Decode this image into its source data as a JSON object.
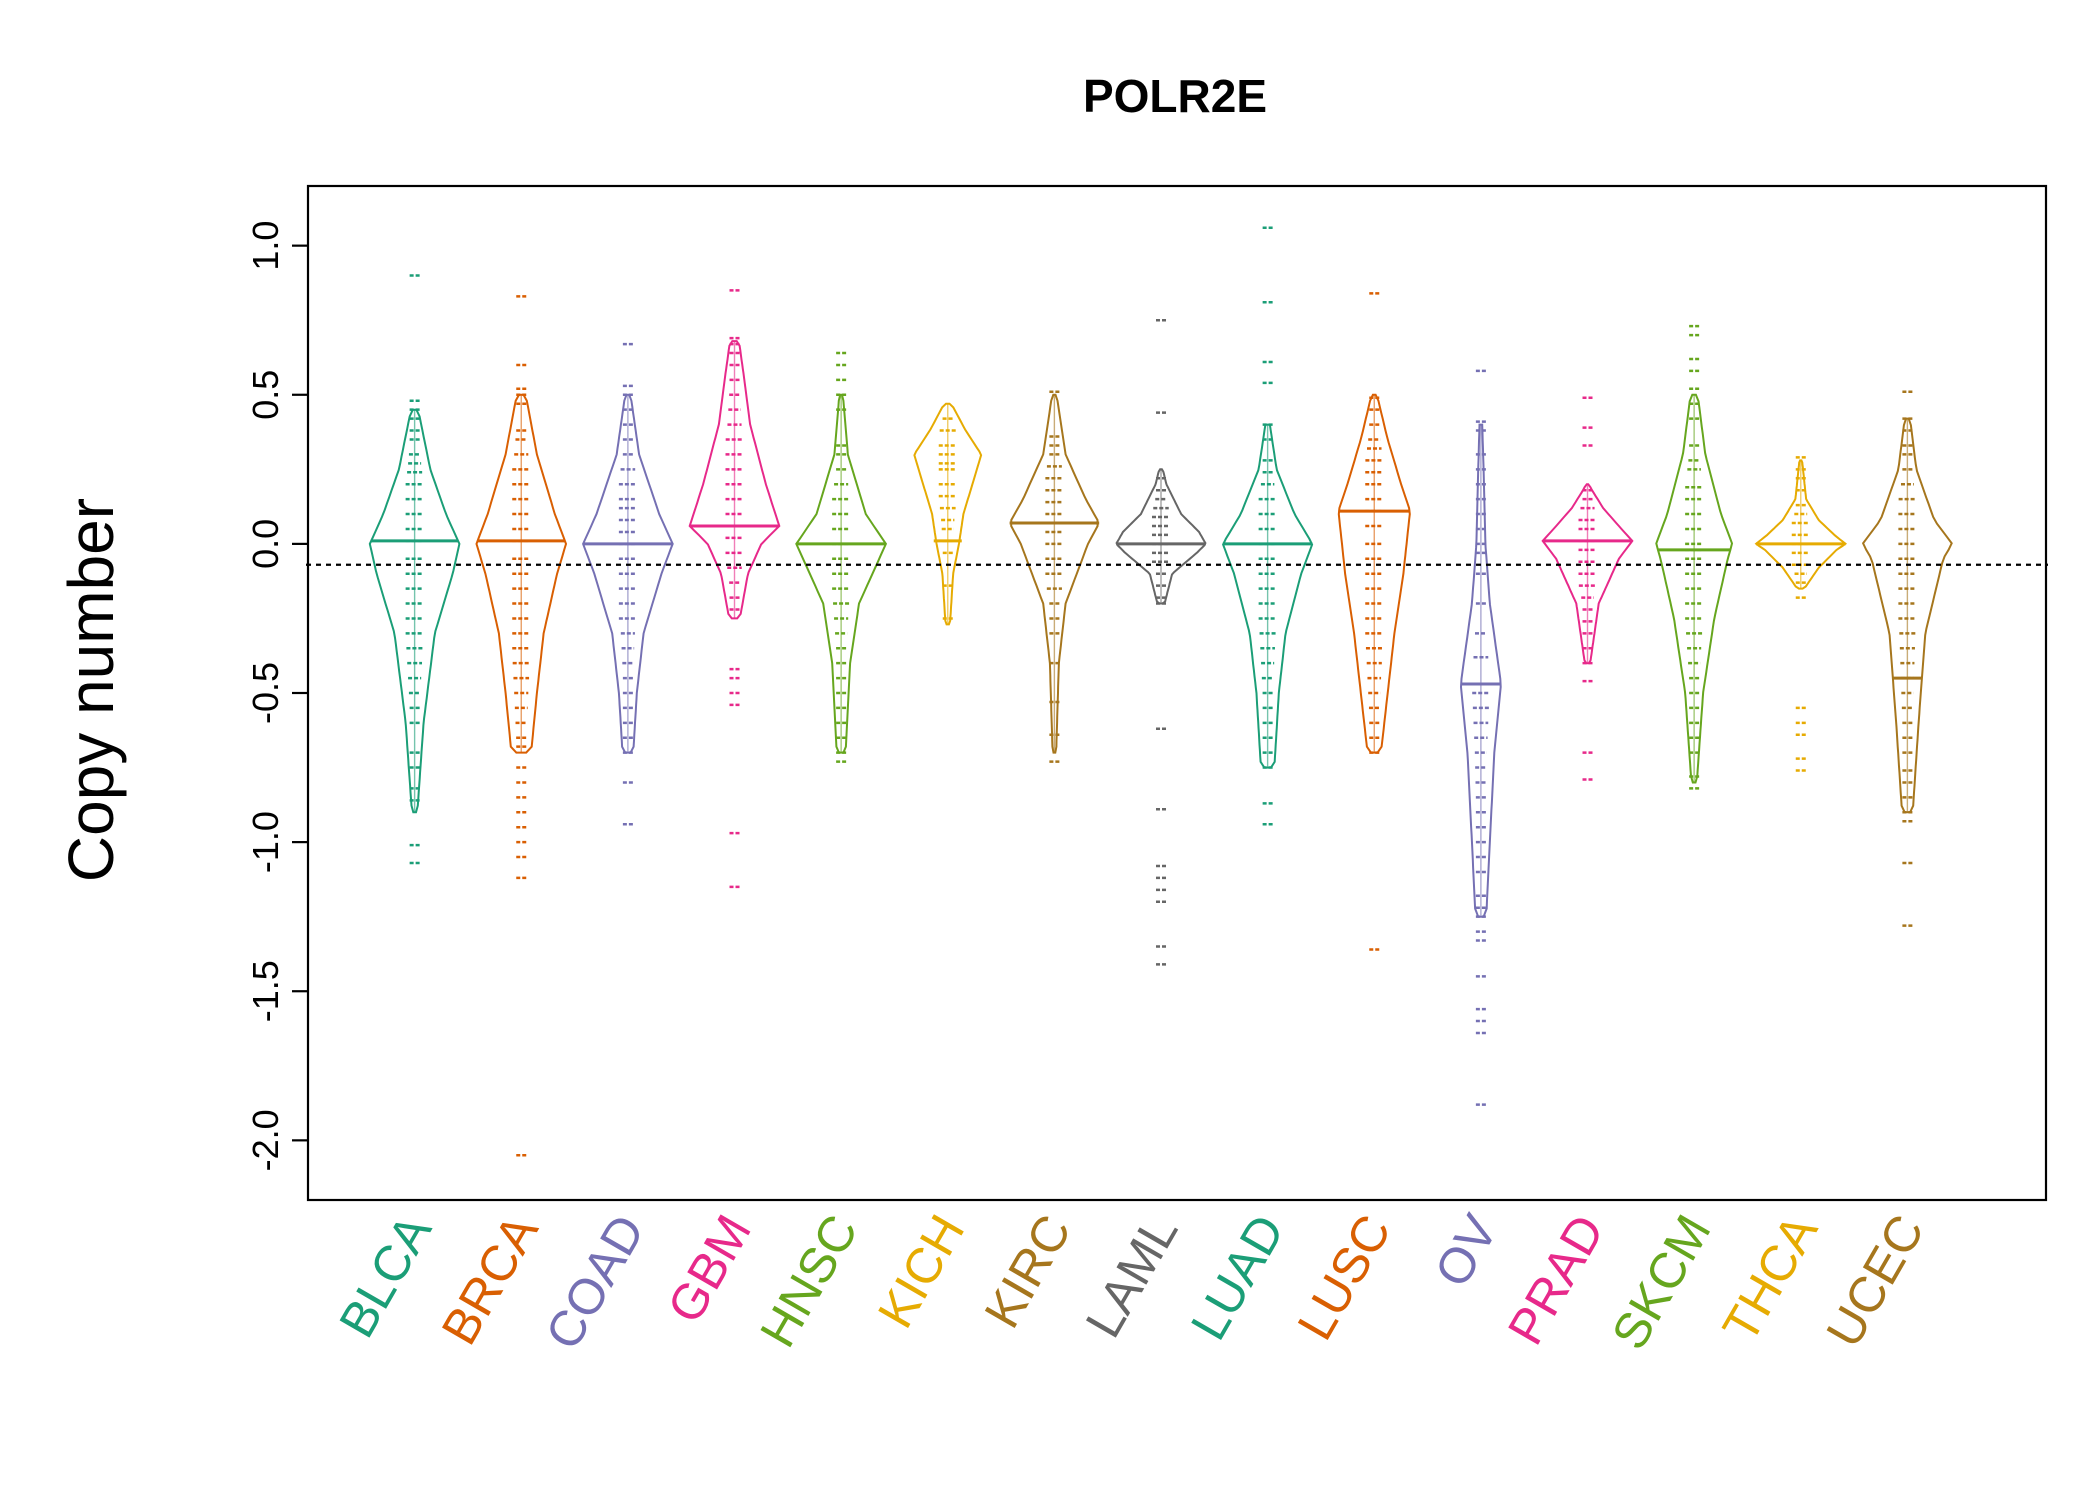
{
  "chart_data": {
    "type": "beanplot",
    "title": "POLR2E",
    "xlabel": "",
    "ylabel": "Copy number",
    "ylim": [
      -2.2,
      1.2
    ],
    "yticks": [
      1.0,
      0.5,
      0.0,
      -0.5,
      -1.0,
      -1.5,
      -2.0
    ],
    "ytick_labels": [
      "1.0",
      "0.5",
      "0.0",
      "-0.5",
      "-1.0",
      "-1.5",
      "-2.0"
    ],
    "reference_line": -0.07,
    "grid": false,
    "legend": "none",
    "series": [
      {
        "name": "BLCA",
        "color": "#1B9E77",
        "median": 0.01,
        "dens": [
          [
            -0.9,
            0.06
          ],
          [
            -0.6,
            0.2
          ],
          [
            -0.3,
            0.45
          ],
          [
            -0.1,
            0.85
          ],
          [
            0.0,
            1.0
          ],
          [
            0.1,
            0.7
          ],
          [
            0.25,
            0.35
          ],
          [
            0.45,
            0.08
          ]
        ],
        "values": [
          0.9,
          0.48,
          0.45,
          0.42,
          0.38,
          0.35,
          0.3,
          0.27,
          0.24,
          0.2,
          0.15,
          0.1,
          0.05,
          0.01,
          -0.05,
          -0.1,
          -0.15,
          -0.2,
          -0.25,
          -0.3,
          -0.35,
          -0.4,
          -0.45,
          -0.5,
          -0.55,
          -0.6,
          -0.7,
          -0.75,
          -0.82,
          -0.86,
          -1.01,
          -1.07
        ]
      },
      {
        "name": "BRCA",
        "color": "#D95F02",
        "median": 0.01,
        "dens": [
          [
            -0.7,
            0.22
          ],
          [
            -0.5,
            0.35
          ],
          [
            -0.3,
            0.5
          ],
          [
            -0.1,
            0.8
          ],
          [
            0.0,
            1.0
          ],
          [
            0.1,
            0.75
          ],
          [
            0.3,
            0.35
          ],
          [
            0.5,
            0.1
          ]
        ],
        "values": [
          0.83,
          0.6,
          0.52,
          0.5,
          0.47,
          0.38,
          0.35,
          0.3,
          0.25,
          0.2,
          0.15,
          0.1,
          0.05,
          0.01,
          -0.05,
          -0.1,
          -0.15,
          -0.2,
          -0.25,
          -0.3,
          -0.35,
          -0.4,
          -0.45,
          -0.5,
          -0.55,
          -0.6,
          -0.65,
          -0.68,
          -0.75,
          -0.8,
          -0.85,
          -0.9,
          -0.95,
          -1.0,
          -1.05,
          -1.12,
          -2.05
        ]
      },
      {
        "name": "COAD",
        "color": "#7570B3",
        "median": 0.0,
        "dens": [
          [
            -0.7,
            0.12
          ],
          [
            -0.5,
            0.2
          ],
          [
            -0.3,
            0.35
          ],
          [
            -0.1,
            0.75
          ],
          [
            0.0,
            1.0
          ],
          [
            0.1,
            0.7
          ],
          [
            0.3,
            0.25
          ],
          [
            0.5,
            0.06
          ]
        ],
        "values": [
          0.67,
          0.53,
          0.5,
          0.45,
          0.4,
          0.35,
          0.3,
          0.25,
          0.2,
          0.15,
          0.12,
          0.08,
          0.04,
          0.0,
          -0.05,
          -0.1,
          -0.15,
          -0.2,
          -0.25,
          -0.3,
          -0.35,
          -0.4,
          -0.45,
          -0.5,
          -0.55,
          -0.6,
          -0.65,
          -0.7,
          -0.8,
          -0.94
        ]
      },
      {
        "name": "GBM",
        "color": "#E7298A",
        "median": 0.06,
        "dens": [
          [
            -0.25,
            0.12
          ],
          [
            -0.1,
            0.3
          ],
          [
            0.0,
            0.6
          ],
          [
            0.06,
            1.0
          ],
          [
            0.2,
            0.7
          ],
          [
            0.4,
            0.35
          ],
          [
            0.55,
            0.22
          ],
          [
            0.68,
            0.1
          ]
        ],
        "values": [
          0.85,
          0.69,
          0.67,
          0.64,
          0.6,
          0.55,
          0.5,
          0.45,
          0.4,
          0.35,
          0.3,
          0.25,
          0.2,
          0.15,
          0.1,
          0.06,
          0.02,
          -0.03,
          -0.08,
          -0.13,
          -0.18,
          -0.22,
          -0.42,
          -0.45,
          -0.5,
          -0.54,
          -0.97,
          -1.15
        ]
      },
      {
        "name": "HNSC",
        "color": "#66A61E",
        "median": 0.0,
        "dens": [
          [
            -0.7,
            0.1
          ],
          [
            -0.4,
            0.2
          ],
          [
            -0.2,
            0.4
          ],
          [
            -0.05,
            0.85
          ],
          [
            0.0,
            1.0
          ],
          [
            0.1,
            0.55
          ],
          [
            0.3,
            0.15
          ],
          [
            0.5,
            0.04
          ]
        ],
        "values": [
          0.64,
          0.6,
          0.55,
          0.5,
          0.45,
          0.33,
          0.3,
          0.25,
          0.2,
          0.15,
          0.1,
          0.05,
          0.0,
          -0.05,
          -0.1,
          -0.15,
          -0.2,
          -0.25,
          -0.3,
          -0.35,
          -0.4,
          -0.45,
          -0.5,
          -0.55,
          -0.6,
          -0.65,
          -0.7,
          -0.73
        ]
      },
      {
        "name": "KICH",
        "color": "#E6AB02",
        "median": 0.01,
        "dens": [
          [
            -0.27,
            0.05
          ],
          [
            -0.1,
            0.12
          ],
          [
            0.0,
            0.25
          ],
          [
            0.1,
            0.35
          ],
          [
            0.2,
            0.55
          ],
          [
            0.3,
            0.75
          ],
          [
            0.38,
            0.4
          ],
          [
            0.47,
            0.08
          ]
        ],
        "values": [
          0.42,
          0.38,
          0.33,
          0.3,
          0.27,
          0.25,
          0.2,
          0.16,
          0.12,
          0.08,
          0.05,
          0.01,
          -0.03,
          -0.14,
          -0.25
        ]
      },
      {
        "name": "KIRC",
        "color": "#A6761D",
        "median": 0.07,
        "dens": [
          [
            -0.7,
            0.04
          ],
          [
            -0.4,
            0.1
          ],
          [
            -0.2,
            0.25
          ],
          [
            0.0,
            0.75
          ],
          [
            0.07,
            1.0
          ],
          [
            0.15,
            0.7
          ],
          [
            0.3,
            0.25
          ],
          [
            0.5,
            0.05
          ]
        ],
        "values": [
          0.51,
          0.36,
          0.33,
          0.3,
          0.26,
          0.22,
          0.18,
          0.14,
          0.1,
          0.07,
          0.04,
          0.0,
          -0.05,
          -0.1,
          -0.15,
          -0.2,
          -0.25,
          -0.3,
          -0.4,
          -0.53,
          -0.64,
          -0.73
        ]
      },
      {
        "name": "LAML",
        "color": "#666666",
        "median": 0.0,
        "dens": [
          [
            -0.2,
            0.08
          ],
          [
            -0.1,
            0.25
          ],
          [
            -0.03,
            0.8
          ],
          [
            0.0,
            1.0
          ],
          [
            0.04,
            0.85
          ],
          [
            0.1,
            0.45
          ],
          [
            0.2,
            0.12
          ],
          [
            0.25,
            0.04
          ]
        ],
        "values": [
          0.75,
          0.44,
          0.22,
          0.18,
          0.15,
          0.12,
          0.09,
          0.06,
          0.03,
          0.0,
          -0.03,
          -0.06,
          -0.1,
          -0.14,
          -0.18,
          -0.2,
          -0.62,
          -0.89,
          -1.08,
          -1.12,
          -1.16,
          -1.2,
          -1.35,
          -1.41
        ]
      },
      {
        "name": "LUAD",
        "color": "#1B9E77",
        "median": 0.0,
        "dens": [
          [
            -0.75,
            0.15
          ],
          [
            -0.5,
            0.25
          ],
          [
            -0.3,
            0.4
          ],
          [
            -0.1,
            0.75
          ],
          [
            0.0,
            1.0
          ],
          [
            0.1,
            0.6
          ],
          [
            0.25,
            0.2
          ],
          [
            0.4,
            0.05
          ]
        ],
        "values": [
          1.06,
          0.81,
          0.61,
          0.54,
          0.4,
          0.35,
          0.28,
          0.24,
          0.2,
          0.15,
          0.1,
          0.05,
          0.0,
          -0.05,
          -0.1,
          -0.15,
          -0.2,
          -0.25,
          -0.3,
          -0.35,
          -0.4,
          -0.45,
          -0.5,
          -0.55,
          -0.6,
          -0.65,
          -0.7,
          -0.75,
          -0.87,
          -0.94
        ]
      },
      {
        "name": "LUSC",
        "color": "#D95F02",
        "median": 0.11,
        "dens": [
          [
            -0.7,
            0.15
          ],
          [
            -0.5,
            0.3
          ],
          [
            -0.3,
            0.45
          ],
          [
            -0.1,
            0.65
          ],
          [
            0.11,
            0.8
          ],
          [
            0.2,
            0.6
          ],
          [
            0.35,
            0.3
          ],
          [
            0.5,
            0.06
          ]
        ],
        "values": [
          0.84,
          0.49,
          0.45,
          0.4,
          0.35,
          0.32,
          0.28,
          0.24,
          0.2,
          0.15,
          0.11,
          0.06,
          0.0,
          -0.05,
          -0.1,
          -0.15,
          -0.2,
          -0.25,
          -0.3,
          -0.35,
          -0.4,
          -0.45,
          -0.5,
          -0.55,
          -0.6,
          -0.65,
          -0.7,
          -1.36
        ]
      },
      {
        "name": "OV",
        "color": "#7570B3",
        "median": -0.47,
        "dens": [
          [
            -1.25,
            0.12
          ],
          [
            -1.0,
            0.2
          ],
          [
            -0.7,
            0.3
          ],
          [
            -0.47,
            0.45
          ],
          [
            -0.2,
            0.2
          ],
          [
            0.0,
            0.1
          ],
          [
            0.25,
            0.06
          ],
          [
            0.4,
            0.03
          ]
        ],
        "values": [
          0.58,
          0.41,
          0.38,
          0.3,
          0.25,
          0.2,
          0.15,
          0.1,
          0.05,
          0.0,
          -0.03,
          -0.1,
          -0.2,
          -0.3,
          -0.38,
          -0.47,
          -0.5,
          -0.55,
          -0.6,
          -0.65,
          -0.7,
          -0.75,
          -0.8,
          -0.85,
          -0.9,
          -0.95,
          -1.0,
          -1.05,
          -1.1,
          -1.18,
          -1.22,
          -1.25,
          -1.3,
          -1.33,
          -1.45,
          -1.56,
          -1.6,
          -1.64,
          -1.88
        ]
      },
      {
        "name": "PRAD",
        "color": "#E7298A",
        "median": 0.01,
        "dens": [
          [
            -0.4,
            0.06
          ],
          [
            -0.2,
            0.25
          ],
          [
            -0.05,
            0.7
          ],
          [
            0.01,
            1.0
          ],
          [
            0.06,
            0.7
          ],
          [
            0.12,
            0.35
          ],
          [
            0.18,
            0.1
          ],
          [
            0.2,
            0.03
          ]
        ],
        "values": [
          0.49,
          0.39,
          0.33,
          0.18,
          0.15,
          0.12,
          0.08,
          0.05,
          0.01,
          -0.02,
          -0.06,
          -0.1,
          -0.14,
          -0.18,
          -0.22,
          -0.26,
          -0.3,
          -0.35,
          -0.4,
          -0.46,
          -0.7,
          -0.79
        ]
      },
      {
        "name": "SKCM",
        "color": "#66A61E",
        "median": -0.02,
        "dens": [
          [
            -0.8,
            0.06
          ],
          [
            -0.5,
            0.2
          ],
          [
            -0.25,
            0.45
          ],
          [
            -0.05,
            0.75
          ],
          [
            0.0,
            0.85
          ],
          [
            0.1,
            0.6
          ],
          [
            0.3,
            0.25
          ],
          [
            0.5,
            0.08
          ]
        ],
        "values": [
          0.73,
          0.7,
          0.62,
          0.58,
          0.52,
          0.47,
          0.42,
          0.33,
          0.28,
          0.25,
          0.19,
          0.15,
          0.1,
          0.05,
          0.0,
          -0.02,
          -0.05,
          -0.1,
          -0.15,
          -0.2,
          -0.25,
          -0.3,
          -0.35,
          -0.4,
          -0.45,
          -0.5,
          -0.55,
          -0.6,
          -0.65,
          -0.7,
          -0.78,
          -0.82
        ]
      },
      {
        "name": "THCA",
        "color": "#E6AB02",
        "median": 0.0,
        "dens": [
          [
            -0.15,
            0.08
          ],
          [
            -0.08,
            0.4
          ],
          [
            -0.02,
            0.8
          ],
          [
            0.0,
            1.0
          ],
          [
            0.03,
            0.75
          ],
          [
            0.08,
            0.4
          ],
          [
            0.15,
            0.12
          ],
          [
            0.28,
            0.03
          ]
        ],
        "values": [
          0.29,
          0.25,
          0.22,
          0.18,
          0.13,
          0.1,
          0.07,
          0.03,
          0.0,
          -0.03,
          -0.07,
          -0.1,
          -0.13,
          -0.18,
          -0.55,
          -0.6,
          -0.64,
          -0.72,
          -0.76
        ]
      },
      {
        "name": "UCEC",
        "color": "#A6761D",
        "median": -0.45,
        "dens": [
          [
            -0.9,
            0.12
          ],
          [
            -0.6,
            0.25
          ],
          [
            -0.3,
            0.4
          ],
          [
            -0.05,
            0.8
          ],
          [
            0.0,
            1.0
          ],
          [
            0.08,
            0.6
          ],
          [
            0.25,
            0.2
          ],
          [
            0.42,
            0.06
          ]
        ],
        "values": [
          0.51,
          0.42,
          0.38,
          0.33,
          0.3,
          0.25,
          0.2,
          0.15,
          0.1,
          0.05,
          0.0,
          -0.05,
          -0.1,
          -0.15,
          -0.2,
          -0.25,
          -0.3,
          -0.35,
          -0.4,
          -0.45,
          -0.5,
          -0.55,
          -0.6,
          -0.65,
          -0.7,
          -0.76,
          -0.8,
          -0.85,
          -0.9,
          -0.93,
          -1.07,
          -1.28
        ]
      }
    ]
  }
}
